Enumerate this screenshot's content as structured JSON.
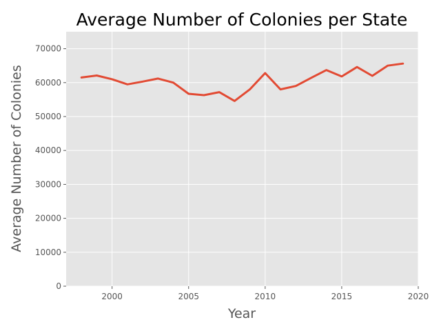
{
  "chart_data": {
    "type": "line",
    "title": "Average Number of Colonies per State",
    "xlabel": "Year",
    "ylabel": "Average Number of Colonies",
    "xlim": [
      1997,
      2020
    ],
    "ylim": [
      0,
      75000
    ],
    "xticks": [
      2000,
      2005,
      2010,
      2015,
      2020
    ],
    "yticks": [
      0,
      10000,
      20000,
      30000,
      40000,
      50000,
      60000,
      70000
    ],
    "grid": true,
    "colors": {
      "line": "#e24a33",
      "plot_bg": "#e5e5e5",
      "grid": "#ffffff",
      "text": "#555555"
    },
    "series": [
      {
        "x": [
          1998,
          1999,
          2000,
          2001,
          2002,
          2003,
          2004,
          2005,
          2006,
          2007,
          2008,
          2009,
          2010,
          2011,
          2012,
          2013,
          2014,
          2015,
          2016,
          2017,
          2018,
          2019
        ],
        "values": [
          61500,
          62100,
          61000,
          59500,
          60300,
          61200,
          60000,
          56700,
          56300,
          57200,
          54600,
          58000,
          62800,
          58000,
          59000,
          61400,
          63700,
          61800,
          64600,
          62000,
          65000,
          65600
        ]
      }
    ]
  }
}
